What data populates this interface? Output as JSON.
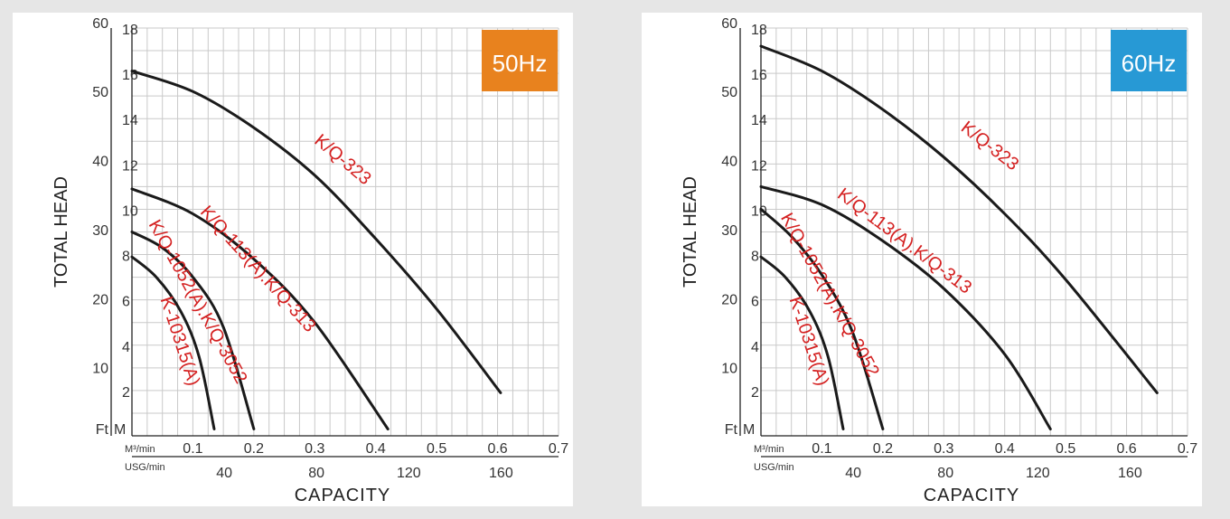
{
  "chart_data": [
    {
      "type": "line",
      "badge": "50Hz",
      "badge_color": "#e8821e",
      "ylabel": "TOTAL HEAD",
      "xlabel": "CAPACITY",
      "unit_ft": "Ft",
      "unit_m": "M",
      "unit_x_primary": "M³/min",
      "unit_x_secondary": "USG/min",
      "xlim": [
        0,
        0.7
      ],
      "ylim": [
        0,
        18
      ],
      "grid": true,
      "x_ticks": [
        0.1,
        0.2,
        0.3,
        0.4,
        0.5,
        0.6,
        0.7
      ],
      "x_tick_labels": [
        "0.1",
        "0.2",
        "0.3",
        "0.4",
        "0.5",
        "0.6",
        "0.7"
      ],
      "usg_ticks": [
        40,
        80,
        120,
        160
      ],
      "usg_tick_labels": [
        "40",
        "80",
        "120",
        "160"
      ],
      "m_ticks": [
        2,
        4,
        6,
        8,
        10,
        12,
        14,
        16,
        18
      ],
      "m_tick_labels": [
        "2",
        "4",
        "6",
        "8",
        "10",
        "12",
        "14",
        "16",
        "18"
      ],
      "ft_ticks": [
        10,
        20,
        30,
        40,
        50,
        60
      ],
      "ft_tick_labels": [
        "10",
        "20",
        "30",
        "40",
        "50",
        "60"
      ],
      "series": [
        {
          "name": "K/Q-323",
          "x": [
            0,
            0.1,
            0.2,
            0.3,
            0.4,
            0.5,
            0.605
          ],
          "y": [
            16.1,
            15.2,
            13.6,
            11.5,
            8.7,
            5.6,
            1.9
          ]
        },
        {
          "name": "K/Q-113(A).K/Q-313",
          "x": [
            0,
            0.1,
            0.2,
            0.3,
            0.42
          ],
          "y": [
            10.9,
            9.8,
            7.8,
            5.0,
            0.3
          ]
        },
        {
          "name": "K/Q-1052(A).K/Q-3052",
          "x": [
            0,
            0.05,
            0.1,
            0.15,
            0.2
          ],
          "y": [
            9.0,
            8.3,
            7.0,
            4.8,
            0.3
          ]
        },
        {
          "name": "K-10315(A)",
          "x": [
            0,
            0.04,
            0.08,
            0.11,
            0.135
          ],
          "y": [
            7.9,
            7.0,
            5.5,
            3.5,
            0.3
          ]
        }
      ]
    },
    {
      "type": "line",
      "badge": "60Hz",
      "badge_color": "#2799d5",
      "ylabel": "TOTAL HEAD",
      "xlabel": "CAPACITY",
      "unit_ft": "Ft",
      "unit_m": "M",
      "unit_x_primary": "M³/min",
      "unit_x_secondary": "USG/min",
      "xlim": [
        0,
        0.7
      ],
      "ylim": [
        0,
        18
      ],
      "grid": true,
      "x_ticks": [
        0.1,
        0.2,
        0.3,
        0.4,
        0.5,
        0.6,
        0.7
      ],
      "x_tick_labels": [
        "0.1",
        "0.2",
        "0.3",
        "0.4",
        "0.5",
        "0.6",
        "0.7"
      ],
      "usg_ticks": [
        40,
        80,
        120,
        160
      ],
      "usg_tick_labels": [
        "40",
        "80",
        "120",
        "160"
      ],
      "m_ticks": [
        2,
        4,
        6,
        8,
        10,
        12,
        14,
        16,
        18
      ],
      "m_tick_labels": [
        "2",
        "4",
        "6",
        "8",
        "10",
        "12",
        "14",
        "16",
        "18"
      ],
      "ft_ticks": [
        10,
        20,
        30,
        40,
        50,
        60
      ],
      "ft_tick_labels": [
        "10",
        "20",
        "30",
        "40",
        "50",
        "60"
      ],
      "series": [
        {
          "name": "K/Q-323",
          "x": [
            0,
            0.1,
            0.2,
            0.3,
            0.4,
            0.5,
            0.65
          ],
          "y": [
            17.2,
            16.1,
            14.4,
            12.3,
            9.8,
            6.9,
            1.9
          ]
        },
        {
          "name": "K/Q-113(A).K/Q-313",
          "x": [
            0,
            0.1,
            0.2,
            0.3,
            0.4,
            0.475
          ],
          "y": [
            11.0,
            10.2,
            8.6,
            6.5,
            3.6,
            0.3
          ]
        },
        {
          "name": "K/Q-1052(A).K/Q-3052",
          "x": [
            0,
            0.05,
            0.1,
            0.15,
            0.2
          ],
          "y": [
            10.0,
            8.8,
            7.1,
            4.6,
            0.3
          ]
        },
        {
          "name": "K-10315(A)",
          "x": [
            0,
            0.04,
            0.08,
            0.11,
            0.135
          ],
          "y": [
            7.9,
            7.0,
            5.5,
            3.5,
            0.3
          ]
        }
      ]
    }
  ]
}
